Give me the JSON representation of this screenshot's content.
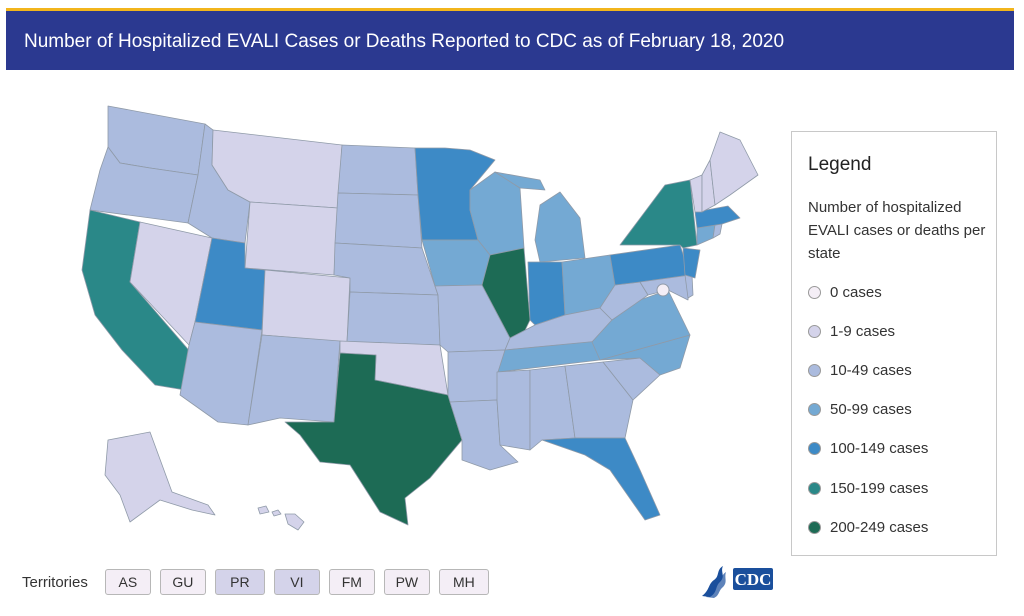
{
  "header": {
    "title": "Number of Hospitalized EVALI Cases or Deaths Reported to CDC as of February 18, 2020"
  },
  "colors": {
    "header_bg": "#2b3990",
    "header_accent": "#f2b51c",
    "c0": "#f4eef6",
    "c1": "#d4d3ea",
    "c2": "#abbbde",
    "c3": "#74a9d3",
    "c4": "#3d8ac6",
    "c5": "#2a8888",
    "c6": "#1d6b55"
  },
  "legend": {
    "title": "Legend",
    "description": "Number of hospitalized EVALI cases or deaths per state",
    "items": [
      {
        "label": "0 cases",
        "color": "#f4eef6"
      },
      {
        "label": "1-9 cases",
        "color": "#d4d3ea"
      },
      {
        "label": "10-49 cases",
        "color": "#abbbde"
      },
      {
        "label": "50-99 cases",
        "color": "#74a9d3"
      },
      {
        "label": "100-149 cases",
        "color": "#3d8ac6"
      },
      {
        "label": "150-199 cases",
        "color": "#2a8888"
      },
      {
        "label": "200-249 cases",
        "color": "#1d6b55"
      }
    ]
  },
  "territories": {
    "label": "Territories",
    "items": [
      {
        "code": "AS",
        "color": "#f4eef6"
      },
      {
        "code": "GU",
        "color": "#f4eef6"
      },
      {
        "code": "PR",
        "color": "#d4d3ea"
      },
      {
        "code": "VI",
        "color": "#d4d3ea"
      },
      {
        "code": "FM",
        "color": "#f4eef6"
      },
      {
        "code": "PW",
        "color": "#f4eef6"
      },
      {
        "code": "MH",
        "color": "#f4eef6"
      }
    ]
  },
  "states": {
    "WA": "c2",
    "OR": "c2",
    "CA": "c5",
    "ID": "c2",
    "NV": "c1",
    "AZ": "c2",
    "UT": "c4",
    "MT": "c1",
    "WY": "c1",
    "CO": "c1",
    "NM": "c2",
    "ND": "c2",
    "SD": "c2",
    "NE": "c2",
    "KS": "c2",
    "OK": "c1",
    "TX": "c6",
    "MN": "c4",
    "IA": "c3",
    "MO": "c2",
    "AR": "c2",
    "LA": "c2",
    "WI": "c3",
    "IL": "c6",
    "MI": "c3",
    "IN": "c4",
    "OH": "c3",
    "KY": "c2",
    "TN": "c3",
    "MS": "c2",
    "AL": "c2",
    "GA": "c2",
    "FL": "c4",
    "SC": "c2",
    "NC": "c3",
    "VA": "c3",
    "WV": "c2",
    "PA": "c4",
    "NY": "c5",
    "VT": "c1",
    "NH": "c1",
    "ME": "c1",
    "MA": "c4",
    "CT": "c3",
    "RI": "c2",
    "NJ": "c4",
    "DE": "c2",
    "MD": "c2",
    "DC": "c0",
    "AK": "c1",
    "HI": "c1"
  },
  "logo": {
    "text": "CDC"
  }
}
